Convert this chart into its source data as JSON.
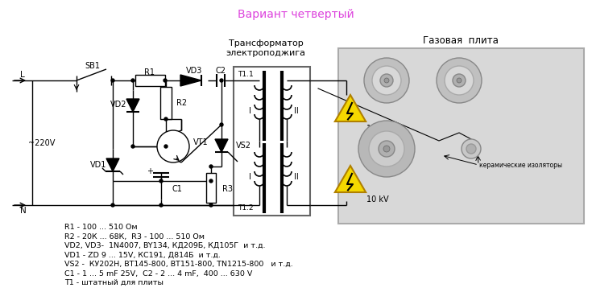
{
  "title": "Вариант четвертый",
  "title_color": "#dd44dd",
  "title_fontsize": 10,
  "background_color": "#ffffff",
  "component_labels": [
    "R1 - 100 ... 510 Ом",
    "R2 - 20К ... 68К,  R3 - 100 ... 510 Ом",
    "VD2, VD3-  1N4007, BY134, КД209Б, КД105Г  и т.д.",
    "VD1 - ZD 9 ... 15V, КС191, Д814Б  и т.д.",
    "VS2 -  КУ202Н, ВТ145-800, ВТ151-800, TN1215-800   и т.д.",
    "С1 - 1 ... 5 mF 25V,  С2 - 2 ... 4 mF,  400 ... 630 V",
    "Т1 - штатный для плиты"
  ],
  "wire_color": "#000000",
  "gas_stove_bg": "#d8d8d8",
  "gas_stove_border": "#aaaaaa",
  "transformer_bg": "#f0f0f0",
  "transformer_border": "#888888",
  "warning_yellow": "#f5d800",
  "warning_border": "#b08000",
  "burner_color1": "#aaaaaa",
  "burner_color2": "#cccccc",
  "burner_color3": "#bbbbbb"
}
